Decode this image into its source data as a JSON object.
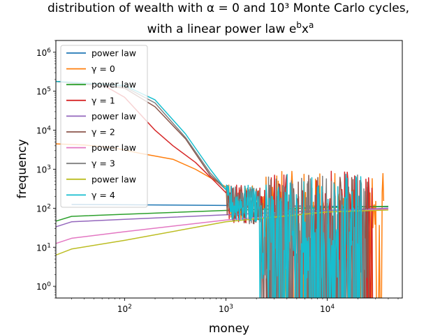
{
  "chart_data": {
    "type": "line",
    "title_line1": "distribution of wealth with α = 0 and  10³ Monte Carlo cycles,",
    "title_line2": "with a linear power law e^b x^a",
    "xlabel": "money",
    "ylabel": "frequency",
    "xscale": "log",
    "yscale": "log",
    "xlim": [
      21,
      55000
    ],
    "ylim": [
      0.5,
      2000000
    ],
    "grid": false,
    "legend_position": "top-left",
    "x_ticks": [
      {
        "value": 100,
        "base": "10",
        "exp": "2"
      },
      {
        "value": 1000,
        "base": "10",
        "exp": "3"
      },
      {
        "value": 10000,
        "base": "10",
        "exp": "4"
      }
    ],
    "y_ticks": [
      {
        "value": 1,
        "base": "10",
        "exp": "0"
      },
      {
        "value": 10,
        "base": "10",
        "exp": "1"
      },
      {
        "value": 100,
        "base": "10",
        "exp": "2"
      },
      {
        "value": 1000,
        "base": "10",
        "exp": "3"
      },
      {
        "value": 10000,
        "base": "10",
        "exp": "4"
      },
      {
        "value": 100000,
        "base": "10",
        "exp": "5"
      },
      {
        "value": 1000000,
        "base": "10",
        "exp": "6"
      }
    ],
    "series": [
      {
        "name": "power law",
        "color": "#1f77b4",
        "kind": "fit",
        "points": [
          [
            30,
            125
          ],
          [
            100,
            123
          ],
          [
            1000,
            118
          ],
          [
            10000,
            112
          ],
          [
            40000,
            110
          ]
        ]
      },
      {
        "name": "γ = 0",
        "color": "#ff7f0e",
        "kind": "sim",
        "start": [
          [
            20,
            4500
          ],
          [
            40,
            4200
          ],
          [
            80,
            3500
          ],
          [
            150,
            2500
          ],
          [
            300,
            1800
          ],
          [
            500,
            1000
          ],
          [
            800,
            500
          ],
          [
            1000,
            350
          ]
        ],
        "noise_to": 36000,
        "noise_hi": 900
      },
      {
        "name": "power law",
        "color": "#2ca02c",
        "kind": "fit",
        "points": [
          [
            20,
            45
          ],
          [
            30,
            62
          ],
          [
            100,
            70
          ],
          [
            1000,
            88
          ],
          [
            10000,
            105
          ],
          [
            40000,
            112
          ]
        ]
      },
      {
        "name": "γ = 1",
        "color": "#d62728",
        "kind": "sim",
        "start": [
          [
            20,
            180000
          ],
          [
            60,
            150000
          ],
          [
            100,
            70000
          ],
          [
            200,
            10000
          ],
          [
            300,
            4000
          ],
          [
            500,
            1500
          ],
          [
            800,
            450
          ],
          [
            1000,
            250
          ]
        ],
        "noise_to": 28000,
        "noise_hi": 900
      },
      {
        "name": "power law",
        "color": "#9467bd",
        "kind": "fit",
        "points": [
          [
            20,
            32
          ],
          [
            30,
            45
          ],
          [
            100,
            52
          ],
          [
            1000,
            68
          ],
          [
            10000,
            88
          ],
          [
            40000,
            100
          ]
        ]
      },
      {
        "name": "γ = 2",
        "color": "#8c564b",
        "kind": "sim",
        "start": [
          [
            20,
            180000
          ],
          [
            100,
            120000
          ],
          [
            200,
            40000
          ],
          [
            400,
            6000
          ],
          [
            700,
            700
          ],
          [
            1000,
            300
          ]
        ],
        "noise_to": 26000,
        "noise_hi": 800
      },
      {
        "name": "power law",
        "color": "#e377c2",
        "kind": "fit",
        "points": [
          [
            20,
            12
          ],
          [
            30,
            17
          ],
          [
            100,
            25
          ],
          [
            1000,
            50
          ],
          [
            10000,
            80
          ],
          [
            40000,
            95
          ]
        ]
      },
      {
        "name": "γ = 3",
        "color": "#7f7f7f",
        "kind": "sim",
        "start": [
          [
            20,
            180000
          ],
          [
            100,
            130000
          ],
          [
            200,
            50000
          ],
          [
            400,
            6500
          ],
          [
            700,
            800
          ],
          [
            1000,
            300
          ]
        ],
        "noise_to": 24000,
        "noise_hi": 800
      },
      {
        "name": "power law",
        "color": "#bcbd22",
        "kind": "fit",
        "points": [
          [
            20,
            6
          ],
          [
            30,
            9
          ],
          [
            100,
            15
          ],
          [
            1000,
            45
          ],
          [
            10000,
            80
          ],
          [
            40000,
            90
          ]
        ]
      },
      {
        "name": "γ = 4",
        "color": "#17becf",
        "kind": "sim",
        "start": [
          [
            20,
            180000
          ],
          [
            100,
            140000
          ],
          [
            200,
            60000
          ],
          [
            400,
            8000
          ],
          [
            700,
            1000
          ],
          [
            1000,
            300
          ]
        ],
        "noise_to": 22000,
        "noise_hi": 800
      }
    ]
  }
}
